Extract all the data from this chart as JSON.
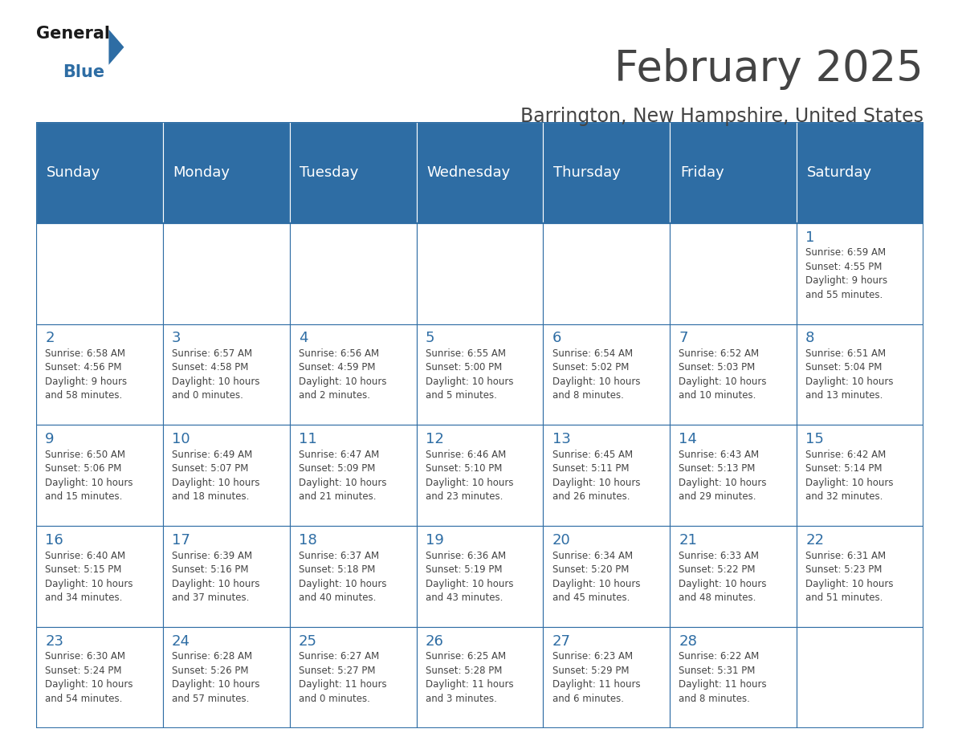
{
  "title": "February 2025",
  "subtitle": "Barrington, New Hampshire, United States",
  "header_color": "#2E6DA4",
  "header_text_color": "#FFFFFF",
  "bg_color": "#FFFFFF",
  "cell_bg_color": "#FFFFFF",
  "day_number_color": "#2E6DA4",
  "text_color": "#444444",
  "grid_color": "#2E6DA4",
  "days_of_week": [
    "Sunday",
    "Monday",
    "Tuesday",
    "Wednesday",
    "Thursday",
    "Friday",
    "Saturday"
  ],
  "calendar_data": [
    [
      {
        "day": "",
        "info": ""
      },
      {
        "day": "",
        "info": ""
      },
      {
        "day": "",
        "info": ""
      },
      {
        "day": "",
        "info": ""
      },
      {
        "day": "",
        "info": ""
      },
      {
        "day": "",
        "info": ""
      },
      {
        "day": "1",
        "info": "Sunrise: 6:59 AM\nSunset: 4:55 PM\nDaylight: 9 hours\nand 55 minutes."
      }
    ],
    [
      {
        "day": "2",
        "info": "Sunrise: 6:58 AM\nSunset: 4:56 PM\nDaylight: 9 hours\nand 58 minutes."
      },
      {
        "day": "3",
        "info": "Sunrise: 6:57 AM\nSunset: 4:58 PM\nDaylight: 10 hours\nand 0 minutes."
      },
      {
        "day": "4",
        "info": "Sunrise: 6:56 AM\nSunset: 4:59 PM\nDaylight: 10 hours\nand 2 minutes."
      },
      {
        "day": "5",
        "info": "Sunrise: 6:55 AM\nSunset: 5:00 PM\nDaylight: 10 hours\nand 5 minutes."
      },
      {
        "day": "6",
        "info": "Sunrise: 6:54 AM\nSunset: 5:02 PM\nDaylight: 10 hours\nand 8 minutes."
      },
      {
        "day": "7",
        "info": "Sunrise: 6:52 AM\nSunset: 5:03 PM\nDaylight: 10 hours\nand 10 minutes."
      },
      {
        "day": "8",
        "info": "Sunrise: 6:51 AM\nSunset: 5:04 PM\nDaylight: 10 hours\nand 13 minutes."
      }
    ],
    [
      {
        "day": "9",
        "info": "Sunrise: 6:50 AM\nSunset: 5:06 PM\nDaylight: 10 hours\nand 15 minutes."
      },
      {
        "day": "10",
        "info": "Sunrise: 6:49 AM\nSunset: 5:07 PM\nDaylight: 10 hours\nand 18 minutes."
      },
      {
        "day": "11",
        "info": "Sunrise: 6:47 AM\nSunset: 5:09 PM\nDaylight: 10 hours\nand 21 minutes."
      },
      {
        "day": "12",
        "info": "Sunrise: 6:46 AM\nSunset: 5:10 PM\nDaylight: 10 hours\nand 23 minutes."
      },
      {
        "day": "13",
        "info": "Sunrise: 6:45 AM\nSunset: 5:11 PM\nDaylight: 10 hours\nand 26 minutes."
      },
      {
        "day": "14",
        "info": "Sunrise: 6:43 AM\nSunset: 5:13 PM\nDaylight: 10 hours\nand 29 minutes."
      },
      {
        "day": "15",
        "info": "Sunrise: 6:42 AM\nSunset: 5:14 PM\nDaylight: 10 hours\nand 32 minutes."
      }
    ],
    [
      {
        "day": "16",
        "info": "Sunrise: 6:40 AM\nSunset: 5:15 PM\nDaylight: 10 hours\nand 34 minutes."
      },
      {
        "day": "17",
        "info": "Sunrise: 6:39 AM\nSunset: 5:16 PM\nDaylight: 10 hours\nand 37 minutes."
      },
      {
        "day": "18",
        "info": "Sunrise: 6:37 AM\nSunset: 5:18 PM\nDaylight: 10 hours\nand 40 minutes."
      },
      {
        "day": "19",
        "info": "Sunrise: 6:36 AM\nSunset: 5:19 PM\nDaylight: 10 hours\nand 43 minutes."
      },
      {
        "day": "20",
        "info": "Sunrise: 6:34 AM\nSunset: 5:20 PM\nDaylight: 10 hours\nand 45 minutes."
      },
      {
        "day": "21",
        "info": "Sunrise: 6:33 AM\nSunset: 5:22 PM\nDaylight: 10 hours\nand 48 minutes."
      },
      {
        "day": "22",
        "info": "Sunrise: 6:31 AM\nSunset: 5:23 PM\nDaylight: 10 hours\nand 51 minutes."
      }
    ],
    [
      {
        "day": "23",
        "info": "Sunrise: 6:30 AM\nSunset: 5:24 PM\nDaylight: 10 hours\nand 54 minutes."
      },
      {
        "day": "24",
        "info": "Sunrise: 6:28 AM\nSunset: 5:26 PM\nDaylight: 10 hours\nand 57 minutes."
      },
      {
        "day": "25",
        "info": "Sunrise: 6:27 AM\nSunset: 5:27 PM\nDaylight: 11 hours\nand 0 minutes."
      },
      {
        "day": "26",
        "info": "Sunrise: 6:25 AM\nSunset: 5:28 PM\nDaylight: 11 hours\nand 3 minutes."
      },
      {
        "day": "27",
        "info": "Sunrise: 6:23 AM\nSunset: 5:29 PM\nDaylight: 11 hours\nand 6 minutes."
      },
      {
        "day": "28",
        "info": "Sunrise: 6:22 AM\nSunset: 5:31 PM\nDaylight: 11 hours\nand 8 minutes."
      },
      {
        "day": "",
        "info": ""
      }
    ]
  ],
  "logo_general_color": "#1a1a1a",
  "logo_blue_color": "#2E6DA4",
  "logo_triangle_color": "#2E6DA4",
  "title_fontsize": 38,
  "subtitle_fontsize": 17,
  "dow_fontsize": 13,
  "day_num_fontsize": 13,
  "info_fontsize": 8.5
}
